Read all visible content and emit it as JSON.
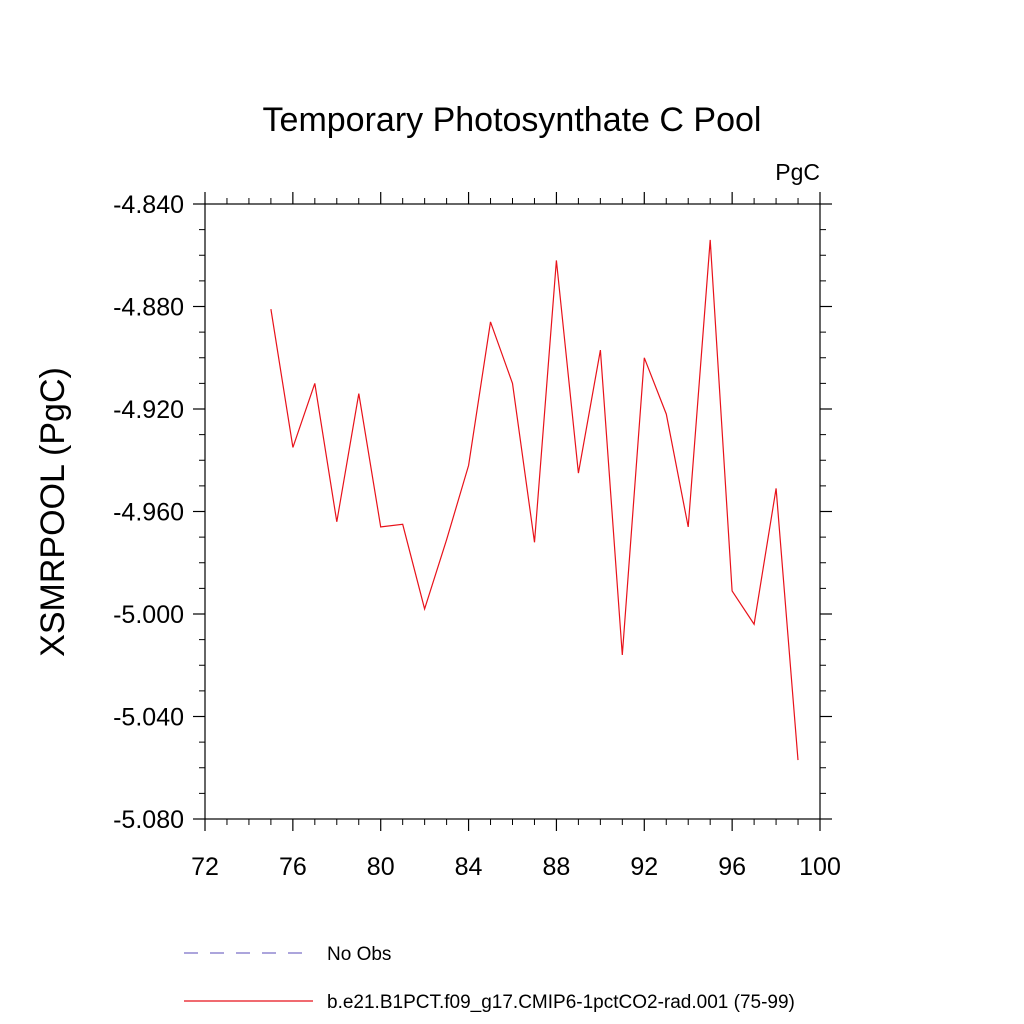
{
  "chart_data": {
    "type": "line",
    "title": "Temporary Photosynthate C Pool",
    "units": "PgC",
    "ylabel": "XSMRPOOL  (PgC)",
    "xlabel": "",
    "xlim": [
      72,
      100
    ],
    "ylim": [
      -5.08,
      -4.84
    ],
    "x_ticks": [
      "72",
      "76",
      "80",
      "84",
      "88",
      "92",
      "96",
      "100"
    ],
    "y_ticks": [
      "-4.840",
      "-4.880",
      "-4.920",
      "-4.960",
      "-5.000",
      "-5.040",
      "-5.080"
    ],
    "series": [
      {
        "name": "b.e21.B1PCT.f09_g17.CMIP6-1pctCO2-rad.001 (75-99)",
        "color": "#e8121a",
        "style": "solid",
        "x": [
          75,
          76,
          77,
          78,
          79,
          80,
          81,
          82,
          83,
          84,
          85,
          86,
          87,
          88,
          89,
          90,
          91,
          92,
          93,
          94,
          95,
          96,
          97,
          98,
          99
        ],
        "y": [
          -4.881,
          -4.935,
          -4.91,
          -4.964,
          -4.914,
          -4.966,
          -4.965,
          -4.998,
          -4.971,
          -4.942,
          -4.886,
          -4.91,
          -4.972,
          -4.862,
          -4.945,
          -4.897,
          -5.016,
          -4.9,
          -4.922,
          -4.966,
          -4.854,
          -4.991,
          -5.004,
          -4.951,
          -5.057
        ]
      }
    ],
    "legend": [
      {
        "label": "No Obs",
        "color": "#7b6fc6",
        "style": "dashed"
      },
      {
        "label": "b.e21.B1PCT.f09_g17.CMIP6-1pctCO2-rad.001 (75-99)",
        "color": "#e8121a",
        "style": "solid"
      }
    ],
    "legend_position": "bottom",
    "grid": false
  }
}
